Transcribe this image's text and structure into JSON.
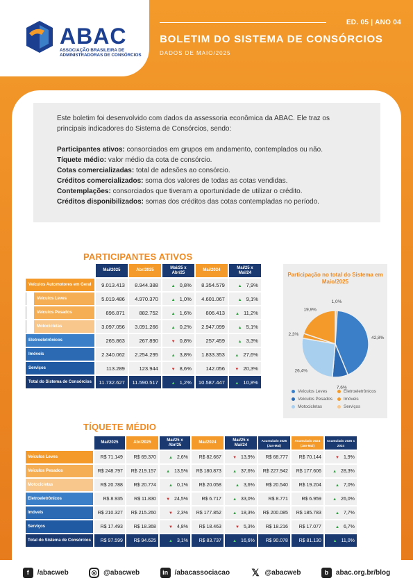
{
  "header": {
    "logo_text": "ABAC",
    "logo_subtitle": "ASSOCIAÇÃO BRASILEIRA DE ADMINISTRADORAS DE CONSÓRCIOS",
    "edition": "ED. 05 | ANO 04",
    "title": "BOLETIM DO SISTEMA DE CONSÓRCIOS",
    "subtitle": "DADOS DE MAIO/2025"
  },
  "intro": {
    "lead": "Este boletim foi desenvolvido com dados da assessoria econômica da ABAC. Ele traz os principais indicadores do Sistema de Consórcios, sendo:",
    "definitions": [
      {
        "term": "Participantes ativos:",
        "text": " consorciados em grupos em andamento, contemplados ou não."
      },
      {
        "term": "Tíquete médio:",
        "text": " valor médio da cota de consórcio."
      },
      {
        "term": "Cotas comercializadas:",
        "text": " total de adesões ao consórcio."
      },
      {
        "term": "Créditos comercializados:",
        "text": " soma dos valores de todas as cotas vendidas."
      },
      {
        "term": "Contemplações:",
        "text": " consorciados que tiveram a oportunidade de utilizar o crédito."
      },
      {
        "term": "Créditos disponibilizados:",
        "text": " somas dos créditos das cotas contempladas no período."
      }
    ]
  },
  "participantes": {
    "title": "PARTICIPANTES ATIVOS",
    "headers": [
      "Mai/2025",
      "Abr/2025",
      "Mai/25 x Abr/25",
      "Mai/2024",
      "Mai/25 x Mai/24"
    ],
    "rows": [
      {
        "label": "Veículos Automotores em Geral",
        "v1": "9.013.413",
        "v2": "8.944.388",
        "d1": "0,8%",
        "d1dir": "up",
        "v3": "8.354.579",
        "d2": "7,9%",
        "d2dir": "up"
      },
      {
        "label": "Veículos Leves",
        "v1": "5.019.486",
        "v2": "4.970.370",
        "d1": "1,0%",
        "d1dir": "up",
        "v3": "4.601.067",
        "d2": "9,1%",
        "d2dir": "up"
      },
      {
        "label": "Veículos Pesados",
        "v1": "896.871",
        "v2": "882.752",
        "d1": "1,6%",
        "d1dir": "up",
        "v3": "806.413",
        "d2": "11,2%",
        "d2dir": "up"
      },
      {
        "label": "Motocicletas",
        "v1": "3.097.056",
        "v2": "3.091.266",
        "d1": "0,2%",
        "d1dir": "up",
        "v3": "2.947.099",
        "d2": "5,1%",
        "d2dir": "up"
      },
      {
        "label": "Eletroeletrônicos",
        "v1": "265.863",
        "v2": "267.890",
        "d1": "0,8%",
        "d1dir": "down",
        "v3": "257.459",
        "d2": "3,3%",
        "d2dir": "up"
      },
      {
        "label": "Imóveis",
        "v1": "2.340.062",
        "v2": "2.254.295",
        "d1": "3,8%",
        "d1dir": "up",
        "v3": "1.833.353",
        "d2": "27,6%",
        "d2dir": "up"
      },
      {
        "label": "Serviços",
        "v1": "113.289",
        "v2": "123.944",
        "d1": "8,6%",
        "d1dir": "down",
        "v3": "142.056",
        "d2": "20,3%",
        "d2dir": "down"
      },
      {
        "label": "Total do Sistema de Consórcios",
        "v1": "11.732.627",
        "v2": "11.590.517",
        "d1": "1,2%",
        "d1dir": "up",
        "v3": "10.587.447",
        "d2": "10,8%",
        "d2dir": "up"
      }
    ]
  },
  "chart_data": {
    "type": "pie",
    "title": "Participação no total do Sistema em Maio/2025",
    "categories": [
      "Veículos Leves",
      "Veículos Pesados",
      "Motocicletas",
      "Eletroeletrônicos",
      "Imóveis",
      "Serviços"
    ],
    "values": [
      42.8,
      7.6,
      26.4,
      2.3,
      19.9,
      1.0
    ],
    "labels": [
      "42,8%",
      "7,6%",
      "26,4%",
      "2,3%",
      "19,9%",
      "1,0%"
    ],
    "colors": [
      "#3a7fc8",
      "#2c6bb3",
      "#a9cfee",
      "#f39a2b",
      "#f39a2b",
      "#f8c78b"
    ],
    "legend": "bottom"
  },
  "tiquete": {
    "title": "TÍQUETE MÉDIO",
    "headers": [
      "Mai/2025",
      "Abr/2025",
      "Mai/25 x Abr/25",
      "Mai/2024",
      "Mai/25 x Mai/24",
      "Acumulado 2025 (Jan-Mai)",
      "Acumulado 2024 (Jan-Mai)",
      "Acumulado 2025 x 2024"
    ],
    "rows": [
      {
        "label": "Veículos Leves",
        "c": [
          "R$ 71.149",
          "R$ 69.370",
          "2,6%",
          "R$ 82.667",
          "13,9%",
          "R$ 68.777",
          "R$ 70.144",
          "1,9%"
        ],
        "dirs": [
          "up",
          "down",
          "down"
        ]
      },
      {
        "label": "Veículos Pesados",
        "c": [
          "R$ 248.797",
          "R$ 219.157",
          "13,5%",
          "R$ 180.873",
          "37,6%",
          "R$ 227.942",
          "R$ 177.606",
          "28,3%"
        ],
        "dirs": [
          "up",
          "up",
          "up"
        ]
      },
      {
        "label": "Motocicletas",
        "c": [
          "R$ 20.788",
          "R$ 20.774",
          "0,1%",
          "R$ 20.058",
          "3,6%",
          "R$ 20.540",
          "R$ 19.204",
          "7,0%"
        ],
        "dirs": [
          "up",
          "up",
          "up"
        ]
      },
      {
        "label": "Eletroeletrônicos",
        "c": [
          "R$ 8.935",
          "R$ 11.830",
          "24,5%",
          "R$ 6.717",
          "33,0%",
          "R$ 8.771",
          "R$ 6.959",
          "26,0%"
        ],
        "dirs": [
          "down",
          "up",
          "up"
        ]
      },
      {
        "label": "Imóveis",
        "c": [
          "R$ 210.327",
          "R$ 215.260",
          "2,3%",
          "R$ 177.852",
          "18,3%",
          "R$ 200.085",
          "R$ 185.783",
          "7,7%"
        ],
        "dirs": [
          "down",
          "up",
          "up"
        ]
      },
      {
        "label": "Serviços",
        "c": [
          "R$ 17.493",
          "R$ 18.368",
          "4,8%",
          "R$ 18.463",
          "5,3%",
          "R$ 18.216",
          "R$ 17.077",
          "6,7%"
        ],
        "dirs": [
          "down",
          "down",
          "up"
        ]
      },
      {
        "label": "Total do Sistema de Consórcios",
        "c": [
          "R$ 97.599",
          "R$ 94.625",
          "3,1%",
          "R$ 83.737",
          "16,6%",
          "R$ 90.078",
          "R$ 81.130",
          "11,0%"
        ],
        "dirs": [
          "up",
          "up",
          "up"
        ]
      }
    ]
  },
  "footer": {
    "facebook": "/abacweb",
    "instagram": "@abacweb",
    "linkedin": "/abacassociacao",
    "x": "@abacweb",
    "blog": "abac.org.br/blog"
  }
}
